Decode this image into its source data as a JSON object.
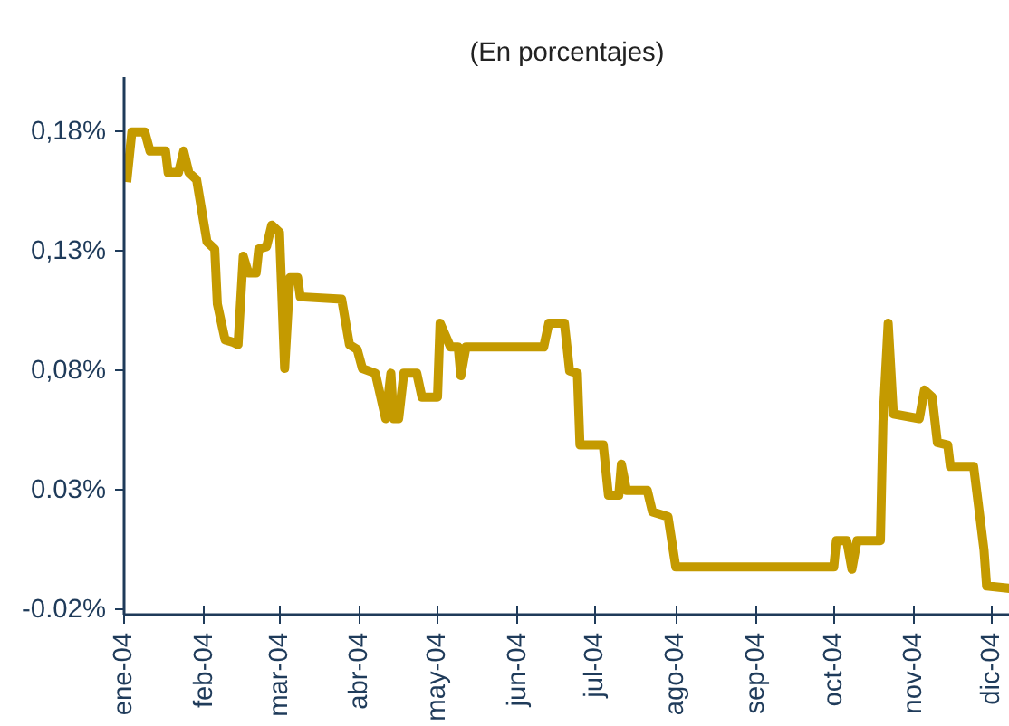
{
  "chart_data": {
    "type": "line",
    "title": "(En porcentajes)",
    "xlim": [
      "2004-01-01",
      "2004-12-08"
    ],
    "ylim": [
      -0.022,
      0.203
    ],
    "xticks": [
      {
        "value": "2004-01-01",
        "label": "ene-04"
      },
      {
        "value": "2004-02-01",
        "label": "feb-04"
      },
      {
        "value": "2004-03-01",
        "label": "mar-04"
      },
      {
        "value": "2004-04-01",
        "label": "abr-04"
      },
      {
        "value": "2004-05-01",
        "label": "may-04"
      },
      {
        "value": "2004-06-01",
        "label": "jun-04"
      },
      {
        "value": "2004-07-01",
        "label": "jul-04"
      },
      {
        "value": "2004-08-01",
        "label": "ago-04"
      },
      {
        "value": "2004-09-01",
        "label": "sep-04"
      },
      {
        "value": "2004-10-01",
        "label": "oct-04"
      },
      {
        "value": "2004-11-01",
        "label": "nov-04"
      },
      {
        "value": "2004-12-01",
        "label": "dic-04"
      }
    ],
    "yticks": [
      {
        "value": 0.18,
        "label": "0,18%"
      },
      {
        "value": 0.13,
        "label": "0,13%"
      },
      {
        "value": 0.08,
        "label": "0,08%"
      },
      {
        "value": 0.03,
        "label": "0.03%"
      },
      {
        "value": -0.02,
        "label": "-0.02%"
      }
    ],
    "x": [
      "2004-01-02",
      "2004-01-04",
      "2004-01-07",
      "2004-01-09",
      "2004-01-11",
      "2004-01-17",
      "2004-01-18",
      "2004-01-22",
      "2004-01-24",
      "2004-01-26",
      "2004-01-29",
      "2004-02-02",
      "2004-02-05",
      "2004-02-06",
      "2004-02-09",
      "2004-02-12",
      "2004-02-14",
      "2004-02-16",
      "2004-02-18",
      "2004-02-21",
      "2004-02-22",
      "2004-02-25",
      "2004-02-27",
      "2004-03-01",
      "2004-03-03",
      "2004-03-05",
      "2004-03-08",
      "2004-03-09",
      "2004-03-25",
      "2004-03-28",
      "2004-03-31",
      "2004-04-02",
      "2004-04-07",
      "2004-04-11",
      "2004-04-13",
      "2004-04-14",
      "2004-04-16",
      "2004-04-18",
      "2004-04-23",
      "2004-04-25",
      "2004-05-01",
      "2004-05-02",
      "2004-05-06",
      "2004-05-09",
      "2004-05-10",
      "2004-05-12",
      "2004-06-11",
      "2004-06-13",
      "2004-06-19",
      "2004-06-21",
      "2004-06-24",
      "2004-06-25",
      "2004-07-04",
      "2004-07-06",
      "2004-07-10",
      "2004-07-11",
      "2004-07-13",
      "2004-07-21",
      "2004-07-23",
      "2004-07-29",
      "2004-08-01",
      "2004-10-01",
      "2004-10-02",
      "2004-10-06",
      "2004-10-08",
      "2004-10-10",
      "2004-10-19",
      "2004-10-20",
      "2004-10-22",
      "2004-10-24",
      "2004-11-03",
      "2004-11-05",
      "2004-11-08",
      "2004-11-10",
      "2004-11-14",
      "2004-11-15",
      "2004-11-24",
      "2004-11-28",
      "2004-11-29",
      "2004-12-08"
    ],
    "series": [
      {
        "color": "#c49a00",
        "values": [
          0.159,
          0.18,
          0.18,
          0.18,
          0.172,
          0.172,
          0.163,
          0.163,
          0.172,
          0.163,
          0.16,
          0.134,
          0.131,
          0.108,
          0.093,
          0.092,
          0.091,
          0.128,
          0.121,
          0.121,
          0.131,
          0.132,
          0.141,
          0.138,
          0.081,
          0.119,
          0.119,
          0.111,
          0.11,
          0.091,
          0.089,
          0.081,
          0.079,
          0.06,
          0.079,
          0.06,
          0.06,
          0.079,
          0.079,
          0.069,
          0.069,
          0.1,
          0.09,
          0.09,
          0.078,
          0.09,
          0.09,
          0.1,
          0.1,
          0.08,
          0.079,
          0.049,
          0.049,
          0.028,
          0.028,
          0.041,
          0.03,
          0.03,
          0.021,
          0.019,
          -0.002,
          -0.002,
          0.009,
          0.009,
          -0.003,
          0.009,
          0.009,
          0.059,
          0.1,
          0.062,
          0.06,
          0.072,
          0.069,
          0.05,
          0.049,
          0.04,
          0.04,
          0.005,
          -0.01,
          -0.011
        ]
      }
    ]
  }
}
